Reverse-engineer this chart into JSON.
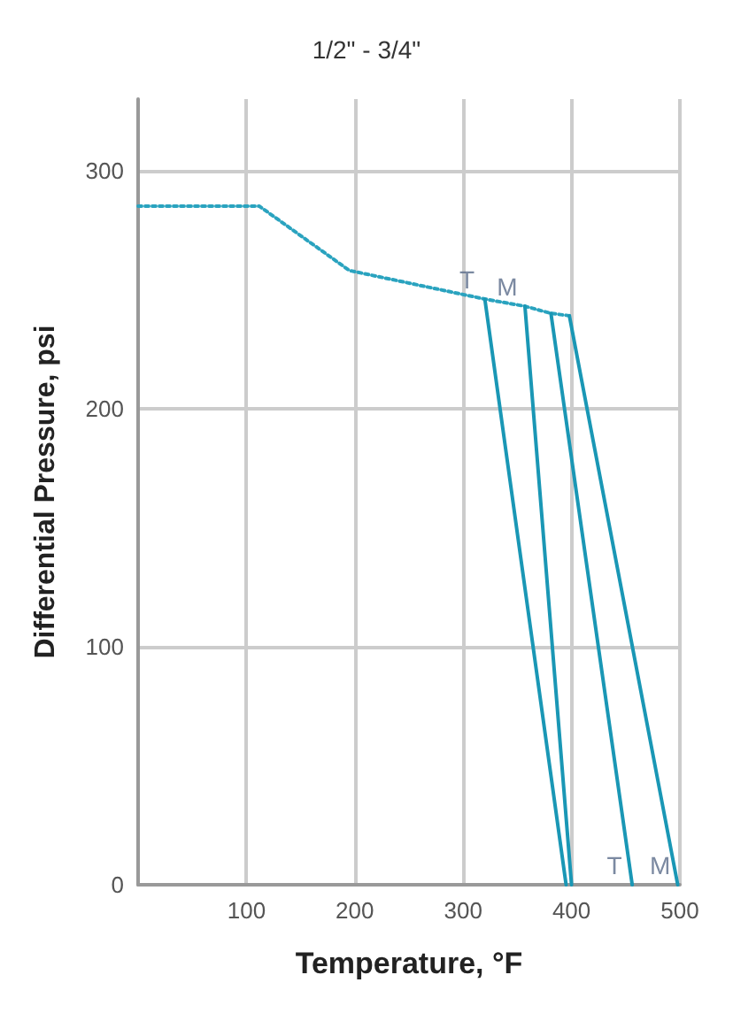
{
  "chart_data": {
    "type": "line",
    "title": "1/2\" - 3/4\"",
    "xlabel": "Temperature, °F",
    "ylabel": "Differential Pressure, psi",
    "xlim": [
      0,
      500
    ],
    "xticks": [
      {
        "value": 0,
        "label": null
      },
      100,
      200,
      300,
      400,
      500
    ],
    "ylim": [
      0,
      330
    ],
    "yticks": [
      0,
      100,
      200,
      300
    ],
    "grid": true,
    "marker": "none",
    "series": [
      {
        "color": "#2aa3bf",
        "line_style": "dotted",
        "x": [
          0,
          112,
          195,
          320,
          357,
          381,
          398
        ],
        "values": [
          285,
          285,
          258,
          246,
          243,
          240,
          239
        ]
      },
      {
        "color": "#1a97b5",
        "line_style": "solid",
        "x": [
          320,
          395
        ],
        "values": [
          246,
          0
        ]
      },
      {
        "color": "#1a97b5",
        "line_style": "solid",
        "x": [
          357,
          400
        ],
        "values": [
          243,
          0
        ]
      },
      {
        "color": "#1a97b5",
        "line_style": "solid",
        "x": [
          381,
          456
        ],
        "values": [
          240,
          0
        ]
      },
      {
        "color": "#1a97b5",
        "line_style": "solid",
        "x": [
          398,
          498
        ],
        "values": [
          239,
          0
        ]
      }
    ],
    "annotations": [
      {
        "text": "T",
        "x": 320,
        "y": 246
      },
      {
        "text": "M",
        "x": 357,
        "y": 243
      },
      {
        "text": "T",
        "x": 456,
        "y": 0
      },
      {
        "text": "M",
        "x": 498,
        "y": 0
      }
    ]
  }
}
